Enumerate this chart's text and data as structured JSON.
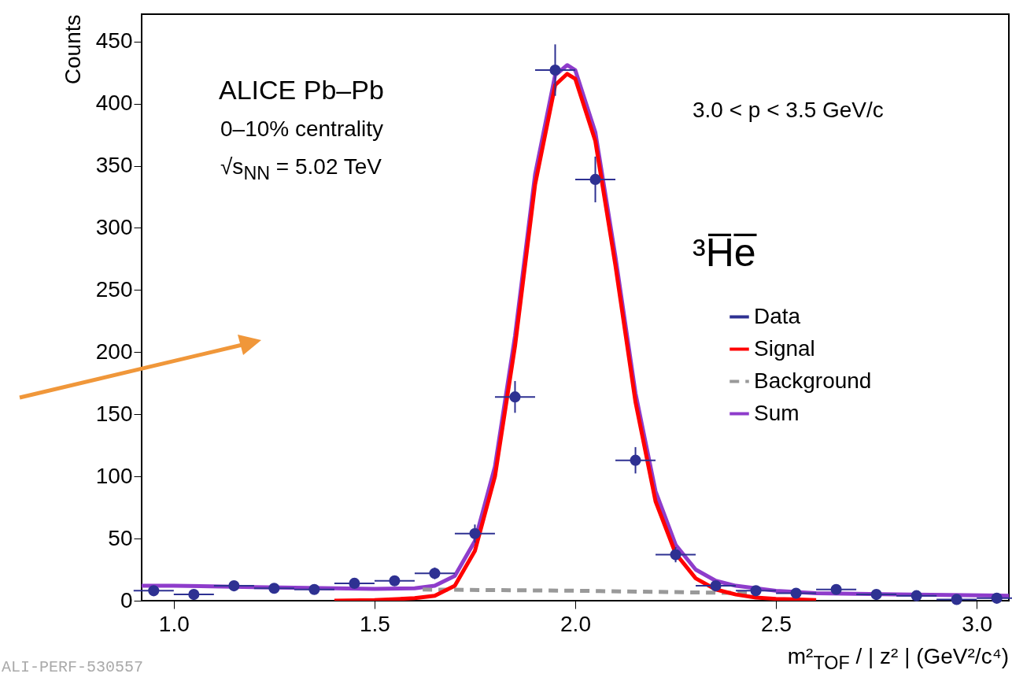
{
  "chart_data": {
    "type": "scatter",
    "ylabel": "Counts",
    "xlabel": "m²$_{TOF}$ / | z² | (GeV²/c⁴)",
    "xlim": [
      0.92,
      3.08
    ],
    "ylim": [
      0,
      472
    ],
    "xticks": [
      {
        "value": 1,
        "label": "1.0"
      },
      {
        "value": 1.5,
        "label": "1.5"
      },
      {
        "value": 2,
        "label": "2.0"
      },
      {
        "value": 2.5,
        "label": "2.5"
      },
      {
        "value": 3,
        "label": "3.0"
      }
    ],
    "yticks": [
      0,
      50,
      100,
      150,
      200,
      250,
      300,
      350,
      400,
      450
    ],
    "legend": "right",
    "grid": false,
    "annotations": [
      "ALICE Pb–Pb",
      "0–10% centrality",
      "√s$_{NN}$ = 5.02 TeV",
      "3.0 < p < 3.5 GeV/c",
      "³H̅e̅",
      "ALI-PERF-530557"
    ],
    "series": [
      {
        "name": "Data",
        "marker": "circle",
        "color": "#2e3192",
        "x": [
          0.95,
          1.05,
          1.15,
          1.25,
          1.35,
          1.45,
          1.55,
          1.65,
          1.75,
          1.85,
          1.95,
          2.05,
          2.15,
          2.25,
          2.35,
          2.45,
          2.55,
          2.65,
          2.75,
          2.85,
          2.95,
          3.05
        ],
        "values": [
          8,
          5,
          12,
          10,
          9,
          14,
          16,
          22,
          54,
          164,
          427,
          339,
          113,
          37,
          12,
          8,
          6,
          9,
          5,
          4,
          1,
          2
        ],
        "errors": [
          2.8,
          2.2,
          3.5,
          3.2,
          3,
          3.7,
          4,
          4.7,
          7.3,
          12.8,
          20.7,
          18.4,
          10.6,
          6.1,
          3.5,
          2.8,
          2.4,
          3,
          2.2,
          2,
          1,
          1.4
        ],
        "xerrors": [
          0.05,
          0.05,
          0.05,
          0.05,
          0.05,
          0.05,
          0.05,
          0.05,
          0.05,
          0.05,
          0.05,
          0.05,
          0.05,
          0.05,
          0.05,
          0.05,
          0.05,
          0.05,
          0.05,
          0.05,
          0.05,
          0.05
        ]
      },
      {
        "name": "Signal",
        "type": "line",
        "color": "#ff0000",
        "x": [
          1.4,
          1.5,
          1.6,
          1.65,
          1.7,
          1.75,
          1.8,
          1.85,
          1.9,
          1.95,
          1.98,
          2.0,
          2.05,
          2.1,
          2.15,
          2.2,
          2.25,
          2.3,
          2.35,
          2.4,
          2.45,
          2.5,
          2.6
        ],
        "values": [
          0,
          0.5,
          2,
          4,
          12,
          40,
          100,
          205,
          335,
          415,
          424,
          420,
          370,
          270,
          160,
          80,
          38,
          18,
          9,
          5,
          2.5,
          1.5,
          0.5
        ]
      },
      {
        "name": "Background",
        "type": "line",
        "line_style": "dashed",
        "color": "#999999",
        "x": [
          1.62,
          2.0,
          2.45
        ],
        "values": [
          9,
          8,
          6
        ]
      },
      {
        "name": "Sum",
        "type": "line",
        "color": "#8e3ccb",
        "x": [
          0.92,
          1.0,
          1.2,
          1.4,
          1.5,
          1.6,
          1.65,
          1.7,
          1.75,
          1.8,
          1.85,
          1.9,
          1.95,
          1.98,
          2.0,
          2.05,
          2.1,
          2.15,
          2.2,
          2.25,
          2.3,
          2.35,
          2.4,
          2.5,
          2.6,
          2.8,
          3.08
        ],
        "values": [
          12,
          12,
          11,
          10,
          9.5,
          10,
          12,
          20,
          48,
          108,
          213,
          343,
          423,
          431,
          427,
          377,
          277,
          167,
          88,
          45,
          25,
          16,
          12,
          8,
          6,
          5,
          4
        ]
      }
    ]
  }
}
